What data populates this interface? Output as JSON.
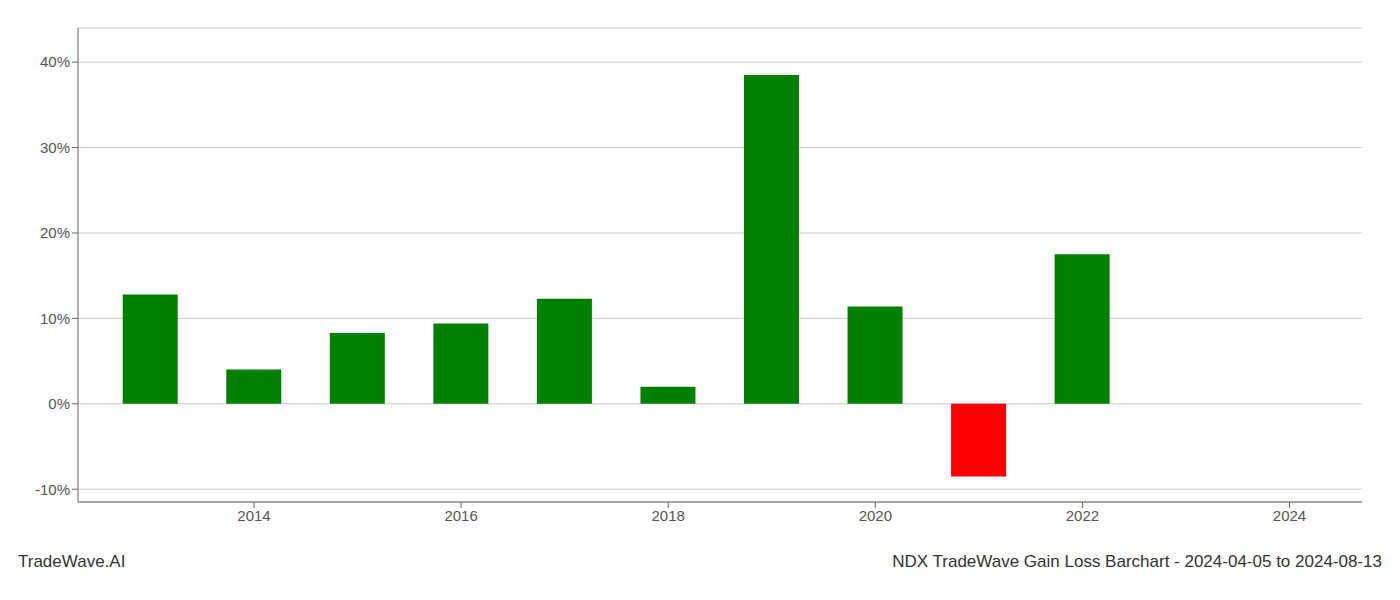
{
  "chart_data": {
    "type": "bar",
    "title": "NDX TradeWave Gain Loss Barchart - 2024-04-05 to 2024-08-13",
    "annotations": [
      "TradeWave.AI"
    ],
    "x": [
      2013,
      2014,
      2015,
      2016,
      2017,
      2018,
      2019,
      2020,
      2021,
      2022,
      2023
    ],
    "values": [
      0.128,
      0.04,
      0.083,
      0.094,
      0.123,
      0.02,
      0.385,
      0.114,
      -0.085,
      0.175,
      0.0
    ],
    "colors": [
      "#008000",
      "#008000",
      "#008000",
      "#008000",
      "#008000",
      "#008000",
      "#008000",
      "#008000",
      "#ff0000",
      "#008000",
      "#008000"
    ],
    "xlim": [
      2012.3,
      2024.7
    ],
    "xticks": [
      2014,
      2016,
      2018,
      2020,
      2022,
      2024
    ],
    "ylim": [
      -0.115,
      0.44
    ],
    "yticks": [
      {
        "value": -0.1,
        "label": "-10%"
      },
      {
        "value": 0.0,
        "label": "0%"
      },
      {
        "value": 0.1,
        "label": "10%"
      },
      {
        "value": 0.2,
        "label": "20%"
      },
      {
        "value": 0.3,
        "label": "30%"
      },
      {
        "value": 0.4,
        "label": "40%"
      }
    ],
    "grid": "y"
  }
}
